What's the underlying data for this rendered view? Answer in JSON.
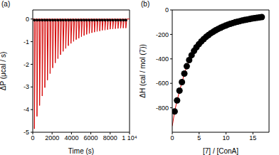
{
  "chart_data": [
    {
      "type": "line",
      "label": "(a)",
      "x_label": "Time (s)",
      "y_label": "ΔP (μcal / s)",
      "xlim": [
        0,
        10000
      ],
      "ylim": [
        -5,
        0.4
      ],
      "xticks": [
        0,
        2000,
        4000,
        6000,
        8000,
        {
          "value": 10000,
          "label": "1 10⁴"
        }
      ],
      "yticks": [
        -5,
        -4,
        -3,
        -2,
        -1,
        0
      ],
      "series": [
        {
          "type": "line",
          "color": "#d40000",
          "marker": "none",
          "x": [
            0,
            150,
            170,
            270,
            420,
            440,
            540,
            690,
            710,
            810,
            960,
            980,
            1080,
            1230,
            1250,
            1350,
            1500,
            1520,
            1620,
            1770,
            1790,
            1890,
            2040,
            2060,
            2160,
            2310,
            2330,
            2430,
            2580,
            2600,
            2700,
            2850,
            2870,
            2970,
            3120,
            3140,
            3240,
            3390,
            3410,
            3510,
            3660,
            3680,
            3780,
            3930,
            3950,
            4050,
            4200,
            4220,
            4320,
            4470,
            4490,
            4590,
            4740,
            4760,
            4860,
            5010,
            5030,
            5130,
            5280,
            5300,
            5400,
            5550,
            5570,
            5670,
            5820,
            5840,
            5940,
            6090,
            6110,
            6210,
            6360,
            6380,
            6480,
            6630,
            6650,
            6750,
            6900,
            6920,
            7020,
            7170,
            7190,
            7290,
            7440,
            7460,
            7560,
            7710,
            7730,
            7830,
            7980,
            8000,
            8100,
            8250,
            8270,
            8370,
            8520,
            8540,
            8640,
            8790,
            8810,
            8910,
            9060,
            9080,
            9180,
            9330,
            9350,
            9450,
            9600,
            9620,
            9720,
            10000
          ],
          "values": [
            0,
            0,
            -4.85,
            0,
            0,
            -4.3,
            0,
            0,
            -3.82,
            0,
            0,
            -3.4,
            0,
            0,
            -3.03,
            0,
            0,
            -2.7,
            0,
            0,
            -2.41,
            0,
            0,
            -2.16,
            0,
            0,
            -1.94,
            0,
            0,
            -1.75,
            0,
            0,
            -1.58,
            0,
            0,
            -1.43,
            0,
            0,
            -1.3,
            0,
            0,
            -1.18,
            0,
            0,
            -1.08,
            0,
            0,
            -0.99,
            0,
            0,
            -0.91,
            0,
            0,
            -0.85,
            0,
            0,
            -0.78,
            0,
            0,
            -0.73,
            0,
            0,
            -0.68,
            0,
            0,
            -0.64,
            0,
            0,
            -0.61,
            0,
            0,
            -0.58,
            0,
            0,
            -0.55,
            0,
            0,
            -0.53,
            0,
            0,
            -0.5,
            0,
            0,
            -0.49,
            0,
            0,
            -0.47,
            0,
            0,
            -0.45,
            0,
            0,
            -0.44,
            0,
            0,
            -0.43,
            0,
            0,
            -0.42,
            0,
            0,
            -0.41,
            0,
            0,
            -0.4,
            0,
            0,
            -0.4,
            0,
            0
          ]
        },
        {
          "type": "line",
          "color": "#000000",
          "marker": "circle",
          "x": [
            170,
            440,
            710,
            980,
            1250,
            1520,
            1790,
            2060,
            2330,
            2600,
            2870,
            3140,
            3410,
            3680,
            3950,
            4220,
            4490,
            4760,
            5030,
            5300,
            5570,
            5840,
            6110,
            6380,
            6650,
            6920,
            7190,
            7460,
            7730,
            8000,
            8270,
            8540,
            8810,
            9080,
            9350,
            9620
          ],
          "values": [
            -0.05,
            -0.05,
            -0.05,
            -0.05,
            -0.05,
            -0.05,
            -0.05,
            -0.05,
            -0.05,
            -0.05,
            -0.05,
            -0.05,
            -0.05,
            -0.05,
            -0.05,
            -0.05,
            -0.05,
            -0.05,
            -0.05,
            -0.05,
            -0.05,
            -0.05,
            -0.05,
            -0.05,
            -0.05,
            -0.05,
            -0.05,
            -0.05,
            -0.05,
            -0.05,
            -0.05,
            -0.05,
            -0.05,
            -0.05,
            -0.05,
            -0.05
          ]
        }
      ]
    },
    {
      "type": "scatter",
      "label": "(b)",
      "x_label": "[7] / [ConA]",
      "y_label": "ΔH (cal / mol (7))",
      "xlim": [
        0,
        18
      ],
      "ylim": [
        -1000,
        0
      ],
      "xticks": [
        0,
        5,
        10,
        15
      ],
      "yticks": [
        -800,
        -600,
        -400,
        -200,
        0
      ],
      "series": [
        {
          "type": "scatter",
          "color": "#000000",
          "marker": "circle",
          "x": [
            0.45,
            0.9,
            1.35,
            1.8,
            2.25,
            2.7,
            3.15,
            3.6,
            4.05,
            4.5,
            4.95,
            5.4,
            5.85,
            6.3,
            6.75,
            7.2,
            7.65,
            8.1,
            8.55,
            9.0,
            9.45,
            9.9,
            10.35,
            10.8,
            11.25,
            11.7,
            12.15,
            12.6,
            13.05,
            13.5,
            13.95,
            14.4,
            14.85,
            15.3,
            15.75,
            16.2,
            16.65
          ],
          "values": [
            -830,
            -740,
            -660,
            -590,
            -520,
            -460,
            -410,
            -370,
            -335,
            -305,
            -280,
            -258,
            -238,
            -220,
            -205,
            -190,
            -178,
            -166,
            -155,
            -145,
            -136,
            -128,
            -120,
            -113,
            -107,
            -101,
            -96,
            -91,
            -86,
            -82,
            -78,
            -74,
            -70,
            -67,
            -64,
            -61,
            -58
          ]
        },
        {
          "type": "line",
          "color": "#e00000",
          "marker": "none",
          "x": [
            0,
            0.45,
            0.9,
            1.8,
            2.7,
            3.6,
            4.5,
            5.4,
            6.3,
            7.2,
            8.1,
            9.0,
            10.8,
            12.6,
            14.4,
            16.65
          ],
          "values": [
            -950,
            -830,
            -740,
            -590,
            -460,
            -370,
            -305,
            -258,
            -220,
            -190,
            -166,
            -145,
            -113,
            -91,
            -74,
            -58
          ]
        }
      ]
    }
  ]
}
